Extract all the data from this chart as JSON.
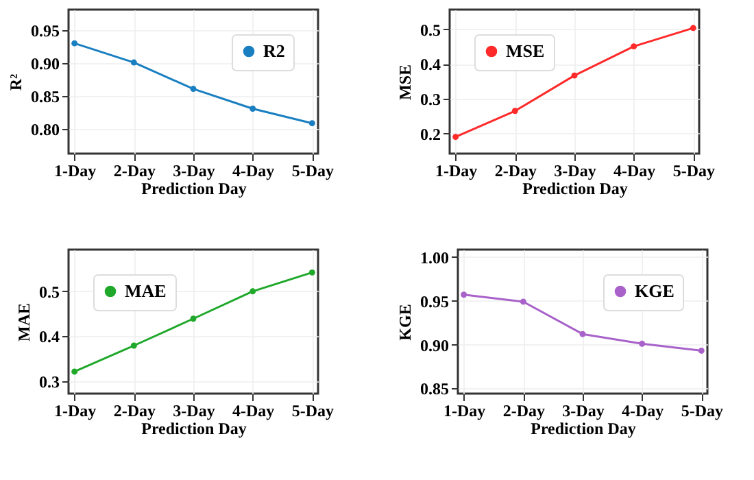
{
  "chart_data": [
    {
      "type": "line",
      "categories": [
        "1-Day",
        "2-Day",
        "3-Day",
        "4-Day",
        "5-Day"
      ],
      "xlabel": "Prediction Day",
      "ylabel": "R²",
      "ylim": [
        0.763,
        0.981
      ],
      "yticks": [
        {
          "value": 0.8,
          "label": "0.80"
        },
        {
          "value": 0.85,
          "label": "0.85"
        },
        {
          "value": 0.9,
          "label": "0.90"
        },
        {
          "value": 0.95,
          "label": "0.95"
        }
      ],
      "grid": true,
      "legend": "top right",
      "marker": "circle",
      "series": [
        {
          "name": "R2",
          "color": "#1a7fc1",
          "values": [
            0.93,
            0.901,
            0.861,
            0.831,
            0.809
          ]
        }
      ]
    },
    {
      "type": "line",
      "categories": [
        "1-Day",
        "2-Day",
        "3-Day",
        "4-Day",
        "5-Day"
      ],
      "xlabel": "Prediction Day",
      "ylabel": "MSE",
      "ylim": [
        0.142,
        0.557
      ],
      "yticks": [
        0.2,
        0.3,
        0.4,
        0.5
      ],
      "grid": true,
      "legend": "top left",
      "marker": "circle",
      "series": [
        {
          "name": "MSE",
          "color": "#ff2a2a",
          "values": [
            0.19,
            0.265,
            0.367,
            0.451,
            0.504
          ]
        }
      ]
    },
    {
      "type": "line",
      "categories": [
        "1-Day",
        "2-Day",
        "3-Day",
        "4-Day",
        "5-Day"
      ],
      "xlabel": "Prediction Day",
      "ylabel": "MAE",
      "ylim": [
        0.272,
        0.593
      ],
      "yticks": [
        0.3,
        0.4,
        0.5
      ],
      "grid": true,
      "legend": "top left",
      "marker": "circle",
      "series": [
        {
          "name": "MAE",
          "color": "#1fa82a",
          "values": [
            0.321,
            0.379,
            0.439,
            0.5,
            0.542
          ]
        }
      ]
    },
    {
      "type": "line",
      "categories": [
        "1-Day",
        "2-Day",
        "3-Day",
        "4-Day",
        "5-Day"
      ],
      "xlabel": "Prediction Day",
      "ylabel": "KGE",
      "ylim": [
        0.844,
        1.0085
      ],
      "yticks": [
        {
          "value": 0.85,
          "label": "0.85"
        },
        {
          "value": 0.9,
          "label": "0.90"
        },
        {
          "value": 0.95,
          "label": "0.95"
        },
        {
          "value": 1.0,
          "label": "1.00"
        }
      ],
      "grid": true,
      "legend": "top right",
      "marker": "circle",
      "series": [
        {
          "name": "KGE",
          "color": "#a862c9",
          "values": [
            0.957,
            0.949,
            0.912,
            0.901,
            0.893
          ]
        }
      ]
    }
  ]
}
